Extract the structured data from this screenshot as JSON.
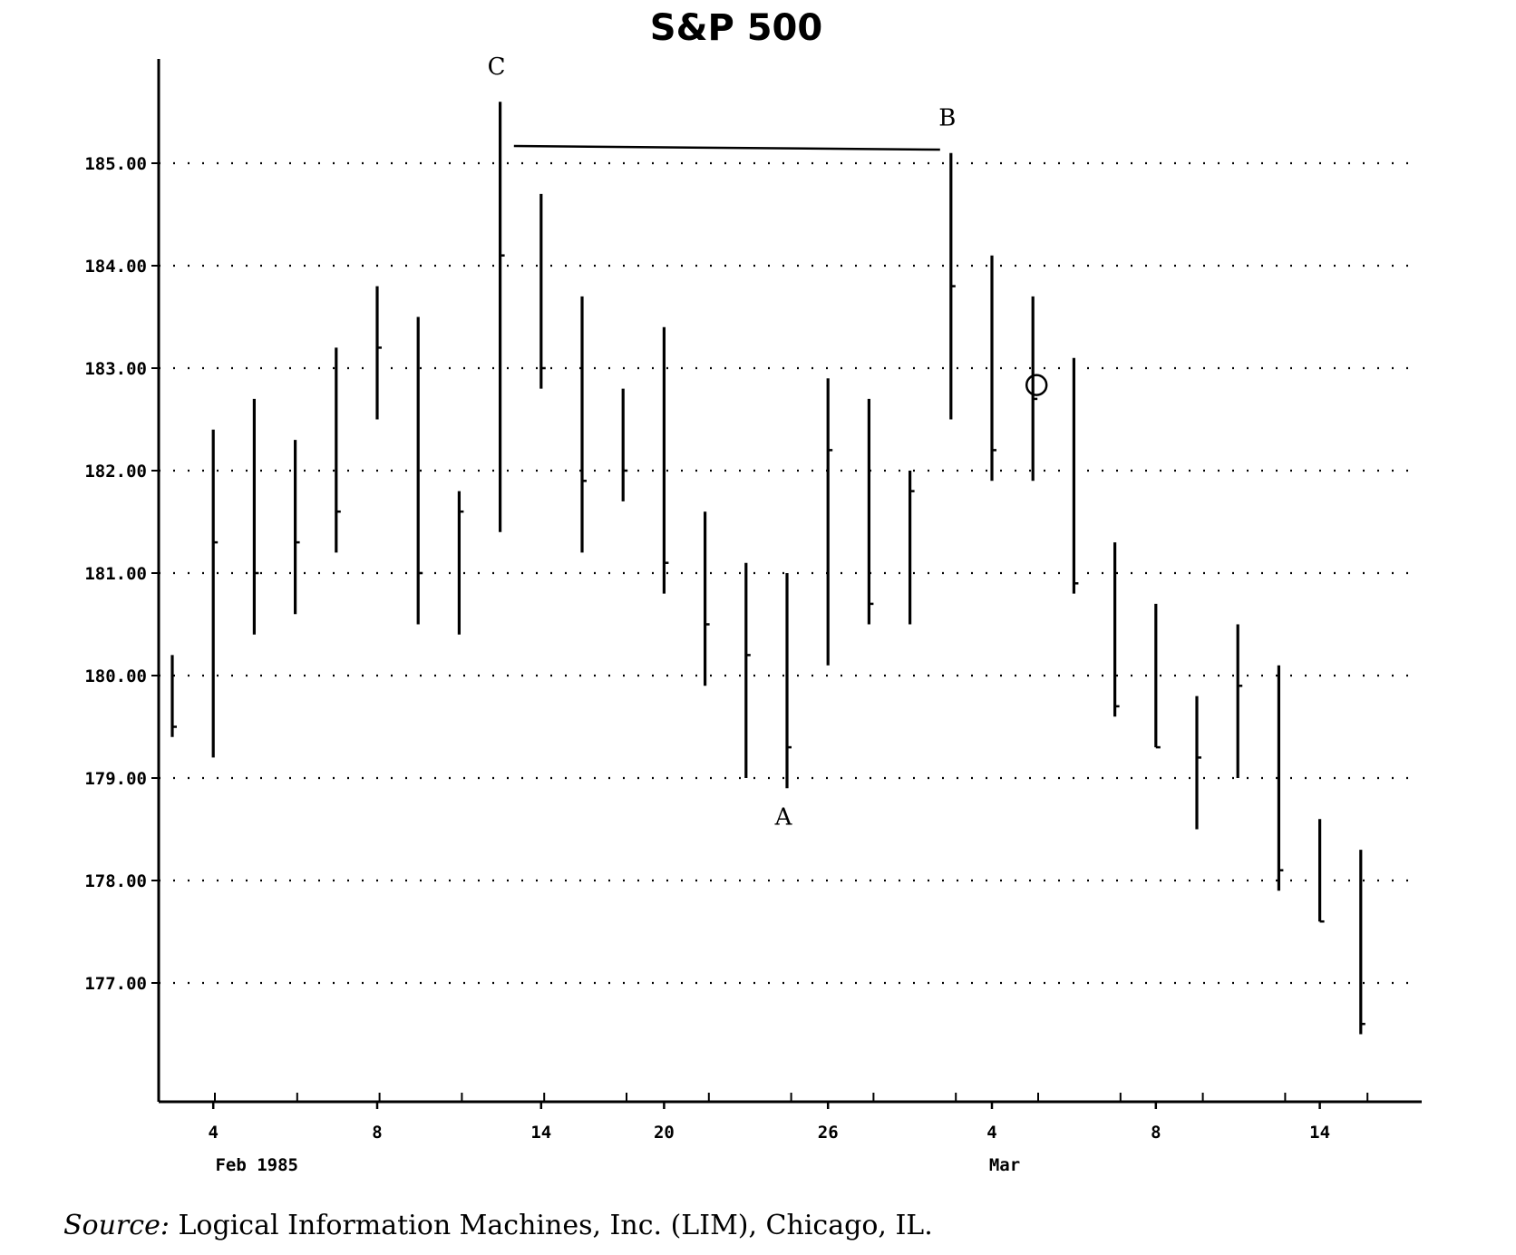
{
  "chart_data": {
    "type": "ohlc",
    "title": "S&P 500",
    "ylim": [
      176.0,
      186.0
    ],
    "yticks": [
      "185.00",
      "184.00",
      "183.00",
      "182.00",
      "181.00",
      "180.00",
      "179.00",
      "178.00",
      "177.00"
    ],
    "ytick_values": [
      185,
      184,
      183,
      182,
      181,
      180,
      179,
      178,
      177
    ],
    "grid": "horizontal dotted",
    "x_tick_labels": [
      {
        "label": "4",
        "date": "1985-02-04"
      },
      {
        "label": "8",
        "date": "1985-02-08"
      },
      {
        "label": "14",
        "date": "1985-02-14"
      },
      {
        "label": "20",
        "date": "1985-02-20"
      },
      {
        "label": "26",
        "date": "1985-02-26"
      },
      {
        "label": "4",
        "date": "1985-03-04"
      },
      {
        "label": "8",
        "date": "1985-03-08"
      },
      {
        "label": "14",
        "date": "1985-03-14"
      }
    ],
    "month_labels": [
      {
        "label": "Feb 1985",
        "date": "1985-02-04"
      },
      {
        "label": "Mar",
        "date": "1985-03-04"
      }
    ],
    "bars": [
      {
        "date": "1985-02-01",
        "high": 180.2,
        "low": 179.4,
        "close": 179.5
      },
      {
        "date": "1985-02-04",
        "high": 182.4,
        "low": 179.2,
        "close": 181.3
      },
      {
        "date": "1985-02-05",
        "high": 182.7,
        "low": 180.4,
        "close": 181.0
      },
      {
        "date": "1985-02-06",
        "high": 182.3,
        "low": 180.6,
        "close": 181.3
      },
      {
        "date": "1985-02-07",
        "high": 183.2,
        "low": 181.2,
        "close": 181.6
      },
      {
        "date": "1985-02-08",
        "high": 183.8,
        "low": 182.5,
        "close": 183.2
      },
      {
        "date": "1985-02-11",
        "high": 183.5,
        "low": 180.5,
        "close": 181.0
      },
      {
        "date": "1985-02-12",
        "high": 181.8,
        "low": 180.4,
        "close": 181.6
      },
      {
        "date": "1985-02-13",
        "high": 185.6,
        "low": 181.4,
        "close": 184.1
      },
      {
        "date": "1985-02-14",
        "high": 184.7,
        "low": 182.8,
        "close": 183.0
      },
      {
        "date": "1985-02-15",
        "high": 183.7,
        "low": 181.2,
        "close": 181.9
      },
      {
        "date": "1985-02-19",
        "high": 182.8,
        "low": 181.7,
        "close": 182.0
      },
      {
        "date": "1985-02-20",
        "high": 183.4,
        "low": 180.8,
        "close": 181.1
      },
      {
        "date": "1985-02-21",
        "high": 181.6,
        "low": 179.9,
        "close": 180.5
      },
      {
        "date": "1985-02-22",
        "high": 181.1,
        "low": 179.0,
        "close": 180.2
      },
      {
        "date": "1985-02-25",
        "high": 181.0,
        "low": 178.9,
        "close": 179.3
      },
      {
        "date": "1985-02-26",
        "high": 182.9,
        "low": 180.1,
        "close": 182.2
      },
      {
        "date": "1985-02-27",
        "high": 182.7,
        "low": 180.5,
        "close": 180.7
      },
      {
        "date": "1985-02-28",
        "high": 182.0,
        "low": 180.5,
        "close": 181.8
      },
      {
        "date": "1985-03-01",
        "high": 185.1,
        "low": 182.5,
        "close": 183.8
      },
      {
        "date": "1985-03-04",
        "high": 184.1,
        "low": 181.9,
        "close": 182.2
      },
      {
        "date": "1985-03-05",
        "high": 183.7,
        "low": 181.9,
        "close": 182.7
      },
      {
        "date": "1985-03-06",
        "high": 183.1,
        "low": 180.8,
        "close": 180.9
      },
      {
        "date": "1985-03-07",
        "high": 181.3,
        "low": 179.6,
        "close": 179.7
      },
      {
        "date": "1985-03-08",
        "high": 180.7,
        "low": 179.3,
        "close": 179.3
      },
      {
        "date": "1985-03-11",
        "high": 179.8,
        "low": 178.5,
        "close": 179.2
      },
      {
        "date": "1985-03-12",
        "high": 180.5,
        "low": 179.0,
        "close": 179.9
      },
      {
        "date": "1985-03-13",
        "high": 180.1,
        "low": 177.9,
        "close": 178.1
      },
      {
        "date": "1985-03-14",
        "high": 178.6,
        "low": 177.6,
        "close": 177.6
      },
      {
        "date": "1985-03-15",
        "high": 178.3,
        "low": 176.5,
        "close": 176.6
      }
    ],
    "annotations": [
      {
        "text": "C",
        "date": "1985-02-13",
        "price": 185.6,
        "position": "above"
      },
      {
        "text": "B",
        "date": "1985-03-01",
        "price": 185.1,
        "position": "above"
      },
      {
        "text": "A",
        "date": "1985-02-25",
        "price": 178.9,
        "position": "below"
      }
    ],
    "resistance_line": {
      "from_date": "1985-02-14",
      "to_date": "1985-03-01",
      "price": 185.15
    },
    "circle_marker": {
      "date": "1985-03-05",
      "price": 182.8
    }
  },
  "source": {
    "label": "Source:",
    "text": "Logical Information Machines, Inc. (LIM), Chicago, IL."
  }
}
